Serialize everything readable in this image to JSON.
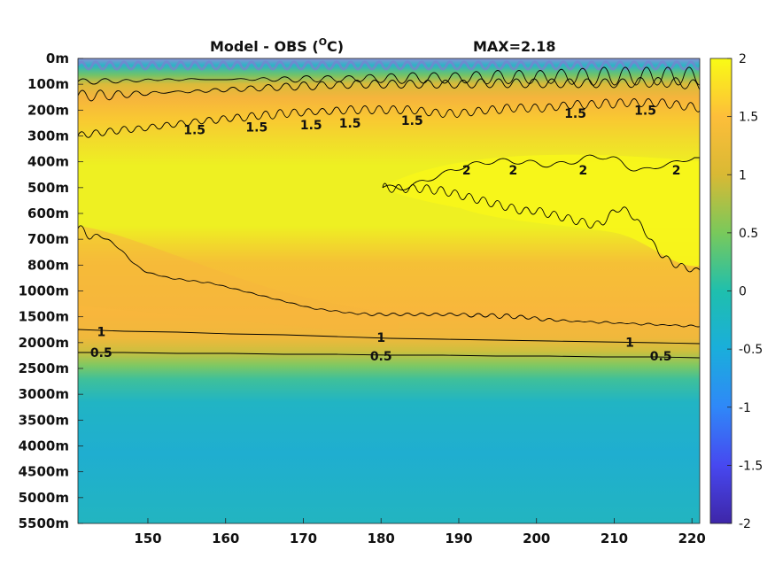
{
  "chart_data": {
    "type": "heatmap",
    "title": "Model - OBS (°C)",
    "title_main": "Model - OBS (",
    "title_sup": "O",
    "title_end": "C)",
    "max_label": "MAX=2.18",
    "xlabel": "",
    "ylabel": "",
    "x_ticks": [
      150,
      160,
      170,
      180,
      190,
      200,
      210,
      220
    ],
    "x_tick_labels": [
      "150",
      "160",
      "170",
      "180",
      "190",
      "200",
      "210",
      "220"
    ],
    "xlim": [
      141,
      221
    ],
    "y_tick_labels": [
      "0m",
      "100m",
      "200m",
      "300m",
      "400m",
      "500m",
      "600m",
      "700m",
      "800m",
      "1000m",
      "1500m",
      "2000m",
      "2500m",
      "3000m",
      "3500m",
      "4000m",
      "4500m",
      "5000m",
      "5500m"
    ],
    "colorbar": {
      "ticks": [
        2,
        1.5,
        1,
        0.5,
        0,
        -0.5,
        -1,
        -1.5,
        -2
      ],
      "tick_labels": [
        "2",
        "1.5",
        "1",
        "0.5",
        "0",
        "-0.5",
        "-1",
        "-1.5",
        "-2"
      ],
      "range": [
        -2,
        2
      ],
      "colors": [
        "#3e26a8",
        "#4748f0",
        "#2f88f8",
        "#1aaedb",
        "#1fbfad",
        "#79c95b",
        "#d9b934",
        "#fdbe3a",
        "#f9fb15"
      ]
    },
    "contours": [
      {
        "level": 0.5,
        "labels": [
          "0.5",
          "0.5",
          "0.5"
        ],
        "x": [
          144,
          180,
          216
        ]
      },
      {
        "level": 1,
        "labels": [
          "1",
          "1",
          "1"
        ],
        "x": [
          144,
          180,
          212
        ]
      },
      {
        "level": 1.5,
        "labels": [
          "1.5",
          "1.5",
          "1.5",
          "1.5",
          "1.5",
          "1.5",
          "1.5"
        ],
        "x": [
          156,
          164,
          171,
          176,
          184,
          205,
          214
        ]
      },
      {
        "level": 2,
        "labels": [
          "2",
          "2",
          "2",
          "2"
        ],
        "x": [
          191,
          197,
          206,
          218
        ]
      }
    ]
  }
}
